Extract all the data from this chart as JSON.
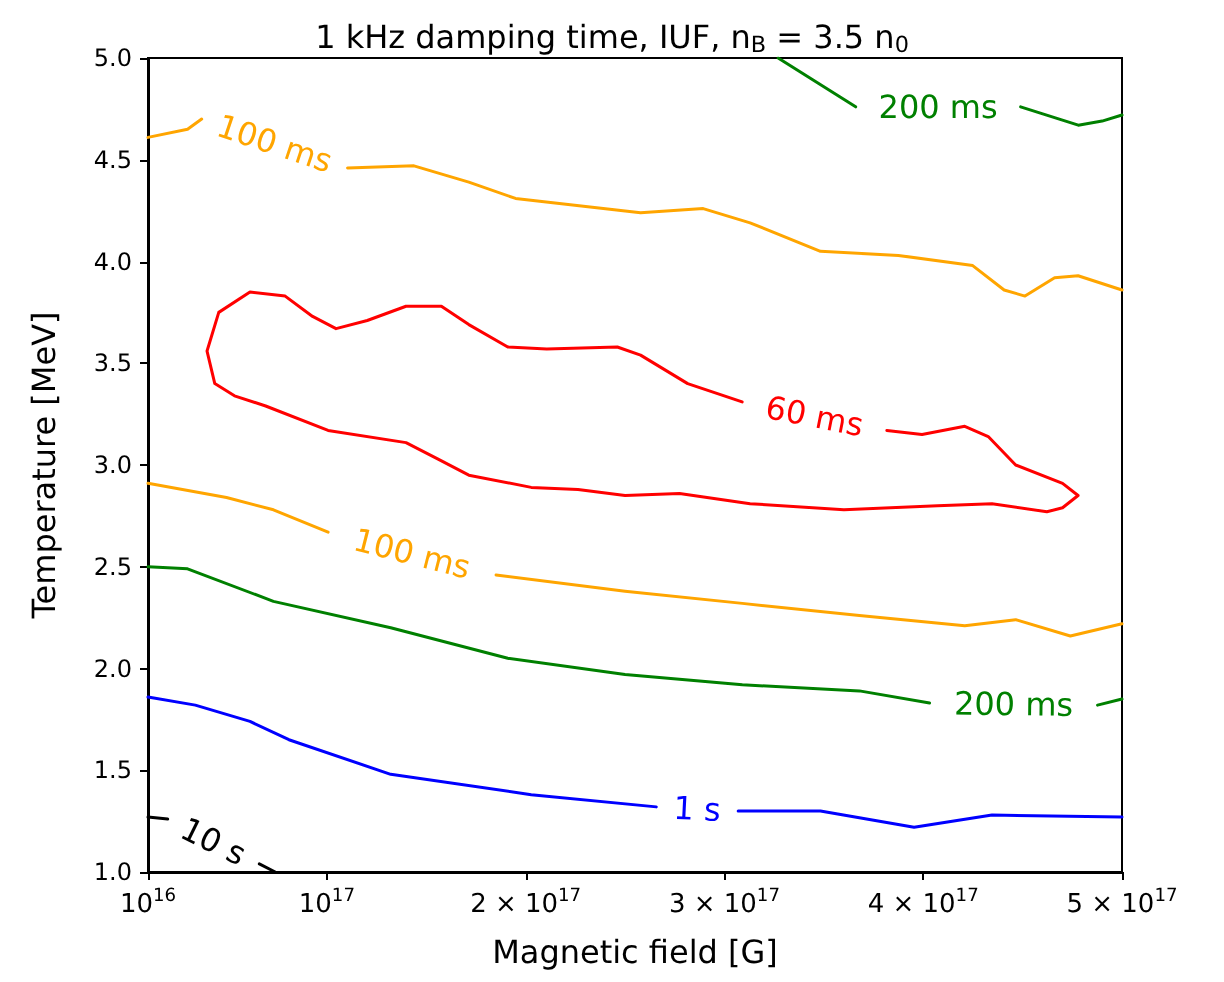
{
  "chart_data": {
    "type": "line",
    "title": "1 kHz damping time, IUF, n$_{B}$ = 3.5 n$_{0}$",
    "xlabel": "Magnetic field [G]",
    "ylabel": "Temperature [MeV]",
    "xlim": [
      1e+16,
      5e+17
    ],
    "xticks": [
      {
        "value": 1e+16,
        "label": "10$^{16}$"
      },
      {
        "value": 1e+17,
        "label": "10$^{17}$"
      },
      {
        "value": 2e+17,
        "label": "2 × 10$^{17}$"
      },
      {
        "value": 3e+17,
        "label": "3 × 10$^{17}$"
      },
      {
        "value": 4e+17,
        "label": "4 × 10$^{17}$"
      },
      {
        "value": 5e+17,
        "label": "5 × 10$^{17}$"
      }
    ],
    "ylim": [
      1,
      5
    ],
    "yticks": [
      {
        "value": 1,
        "label": "1.0"
      },
      {
        "value": 1.5,
        "label": "1.5"
      },
      {
        "value": 2,
        "label": "2.0"
      },
      {
        "value": 2.5,
        "label": "2.5"
      },
      {
        "value": 3,
        "label": "3.0"
      },
      {
        "value": 3.5,
        "label": "3.5"
      },
      {
        "value": 4,
        "label": "4.0"
      },
      {
        "value": 4.5,
        "label": "4.5"
      },
      {
        "value": 5,
        "label": "5.0"
      }
    ],
    "grid": false,
    "legend": false,
    "marker": "none",
    "line_style": "solid",
    "series": [
      {
        "name": "200 ms",
        "color": "#008000",
        "x": [
          3.27e+17,
          3.66e+17,
          null,
          4.49e+17,
          4.78e+17,
          4.9e+17,
          5e+17
        ],
        "values": [
          5.0,
          4.76,
          null,
          4.76,
          4.67,
          4.69,
          4.72
        ]
      },
      {
        "name": "100 ms",
        "color": "#ffa500",
        "x": [
          1e+16,
          2.99e+16,
          3.7e+16,
          null,
          1.104e+17,
          1.438e+17,
          1.714e+17,
          1.949e+17,
          2.578e+17,
          2.893e+17,
          3.129e+17,
          3.483e+17,
          3.875e+17,
          4.249e+17,
          4.407e+17,
          4.512e+17,
          4.661e+17,
          4.779e+17,
          5e+17
        ],
        "values": [
          4.61,
          4.65,
          4.7,
          null,
          4.46,
          4.47,
          4.39,
          4.31,
          4.24,
          4.26,
          4.19,
          4.05,
          4.03,
          3.98,
          3.86,
          3.83,
          3.92,
          3.93,
          3.86
        ]
      },
      {
        "name": "60 ms",
        "color": "#ff0000",
        "x": [
          1.557e+17,
          1.398e+17,
          1.006e+17,
          6.92e+16,
          5.35e+16,
          4.36e+16,
          3.97e+16,
          4.56e+16,
          6.13e+16,
          7.9e+16,
          9.28e+16,
          1.046e+17,
          1.203e+17,
          1.398e+17,
          1.576e+17,
          1.714e+17,
          1.91e+17,
          2.106e+17,
          2.461e+17,
          2.578e+17,
          2.815e+17,
          3.089e+17,
          null,
          3.817e+17,
          3.994e+17,
          4.209e+17,
          4.327e+17,
          4.465e+17,
          4.701e+17,
          4.779e+17,
          4.701e+17,
          4.622e+17,
          4.346e+17,
          4.072e+17,
          3.601e+17,
          3.129e+17,
          2.774e+17,
          2.5e+17,
          2.263e+17,
          2.028e+17,
          1.714e+17,
          1.557e+17
        ],
        "values": [
          3.03,
          3.11,
          3.17,
          3.29,
          3.34,
          3.4,
          3.56,
          3.75,
          3.85,
          3.83,
          3.73,
          3.67,
          3.71,
          3.78,
          3.78,
          3.69,
          3.58,
          3.57,
          3.58,
          3.54,
          3.4,
          3.31,
          null,
          3.17,
          3.15,
          3.19,
          3.14,
          3.0,
          2.91,
          2.85,
          2.79,
          2.77,
          2.81,
          2.8,
          2.78,
          2.81,
          2.86,
          2.85,
          2.88,
          2.89,
          2.95,
          3.03
        ]
      },
      {
        "name": "100 ms",
        "color": "#ffa500",
        "x": [
          1e+16,
          4.95e+16,
          7.31e+16,
          1.006e+17,
          null,
          1.851e+17,
          2.5e+17,
          3.09e+17,
          3.679e+17,
          4.209e+17,
          4.465e+17,
          4.74e+17,
          5e+17
        ],
        "values": [
          2.91,
          2.84,
          2.78,
          2.67,
          null,
          2.46,
          2.38,
          2.32,
          2.26,
          2.21,
          2.24,
          2.16,
          2.22
        ]
      },
      {
        "name": "200 ms",
        "color": "#008000",
        "x": [
          1e+16,
          2.99e+16,
          7.31e+16,
          1.321e+17,
          1.91e+17,
          2.5e+17,
          3.09e+17,
          3.679e+17,
          4.032e+17,
          null,
          4.877e+17,
          5e+17
        ],
        "values": [
          2.5,
          2.49,
          2.33,
          2.2,
          2.05,
          1.97,
          1.92,
          1.89,
          1.83,
          null,
          1.82,
          1.85
        ]
      },
      {
        "name": "1 s",
        "color": "#0000ff",
        "x": [
          1e+16,
          3.38e+16,
          6.13e+16,
          8.09e+16,
          1.321e+17,
          2.028e+17,
          2.657e+17,
          null,
          3.069e+17,
          3.483e+17,
          3.954e+17,
          4.346e+17,
          5e+17
        ],
        "values": [
          1.86,
          1.82,
          1.74,
          1.65,
          1.48,
          1.38,
          1.32,
          null,
          1.3,
          1.3,
          1.22,
          1.28,
          1.27
        ]
      },
      {
        "name": "10 s",
        "color": "#000000",
        "x": [
          1e+16,
          1.99e+16,
          null,
          6.6e+16,
          7.4e+16
        ],
        "values": [
          1.27,
          1.26,
          null,
          1.04,
          1.0
        ]
      }
    ]
  }
}
